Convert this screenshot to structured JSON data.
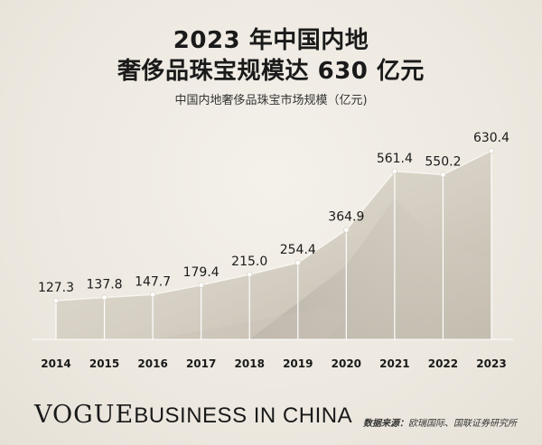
{
  "header": {
    "title_line1": "2023 年中国内地",
    "title_line2": "奢侈品珠宝规模达 630 亿元",
    "subtitle": "中国内地奢侈品珠宝市场规模（亿元)"
  },
  "footer": {
    "logo_bold": "VOGUE",
    "logo_rest": "BUSINESS IN CHINA",
    "source_label": "数据来源：",
    "source_text": "欧瑞国际、国联证券研究所"
  },
  "colors": {
    "background": "#efebe3",
    "area_fill": "#d9d3c7",
    "area_shade": "#c5beb2",
    "line": "#ffffff",
    "text": "#1a1a1a"
  },
  "chart_data": {
    "type": "area",
    "categories": [
      "2014",
      "2015",
      "2016",
      "2017",
      "2018",
      "2019",
      "2020",
      "2021",
      "2022",
      "2023"
    ],
    "values": [
      127.3,
      137.8,
      147.7,
      179.4,
      215.0,
      254.4,
      364.9,
      561.4,
      550.2,
      630.4
    ],
    "value_labels": [
      "127.3",
      "137.8",
      "147.7",
      "179.4",
      "215.0",
      "254.4",
      "364.9",
      "561.4",
      "550.2",
      "630.4"
    ],
    "title": "中国内地奢侈品珠宝市场规模（亿元)",
    "xlabel": "",
    "ylabel": "",
    "grid": false,
    "legend": "none"
  }
}
